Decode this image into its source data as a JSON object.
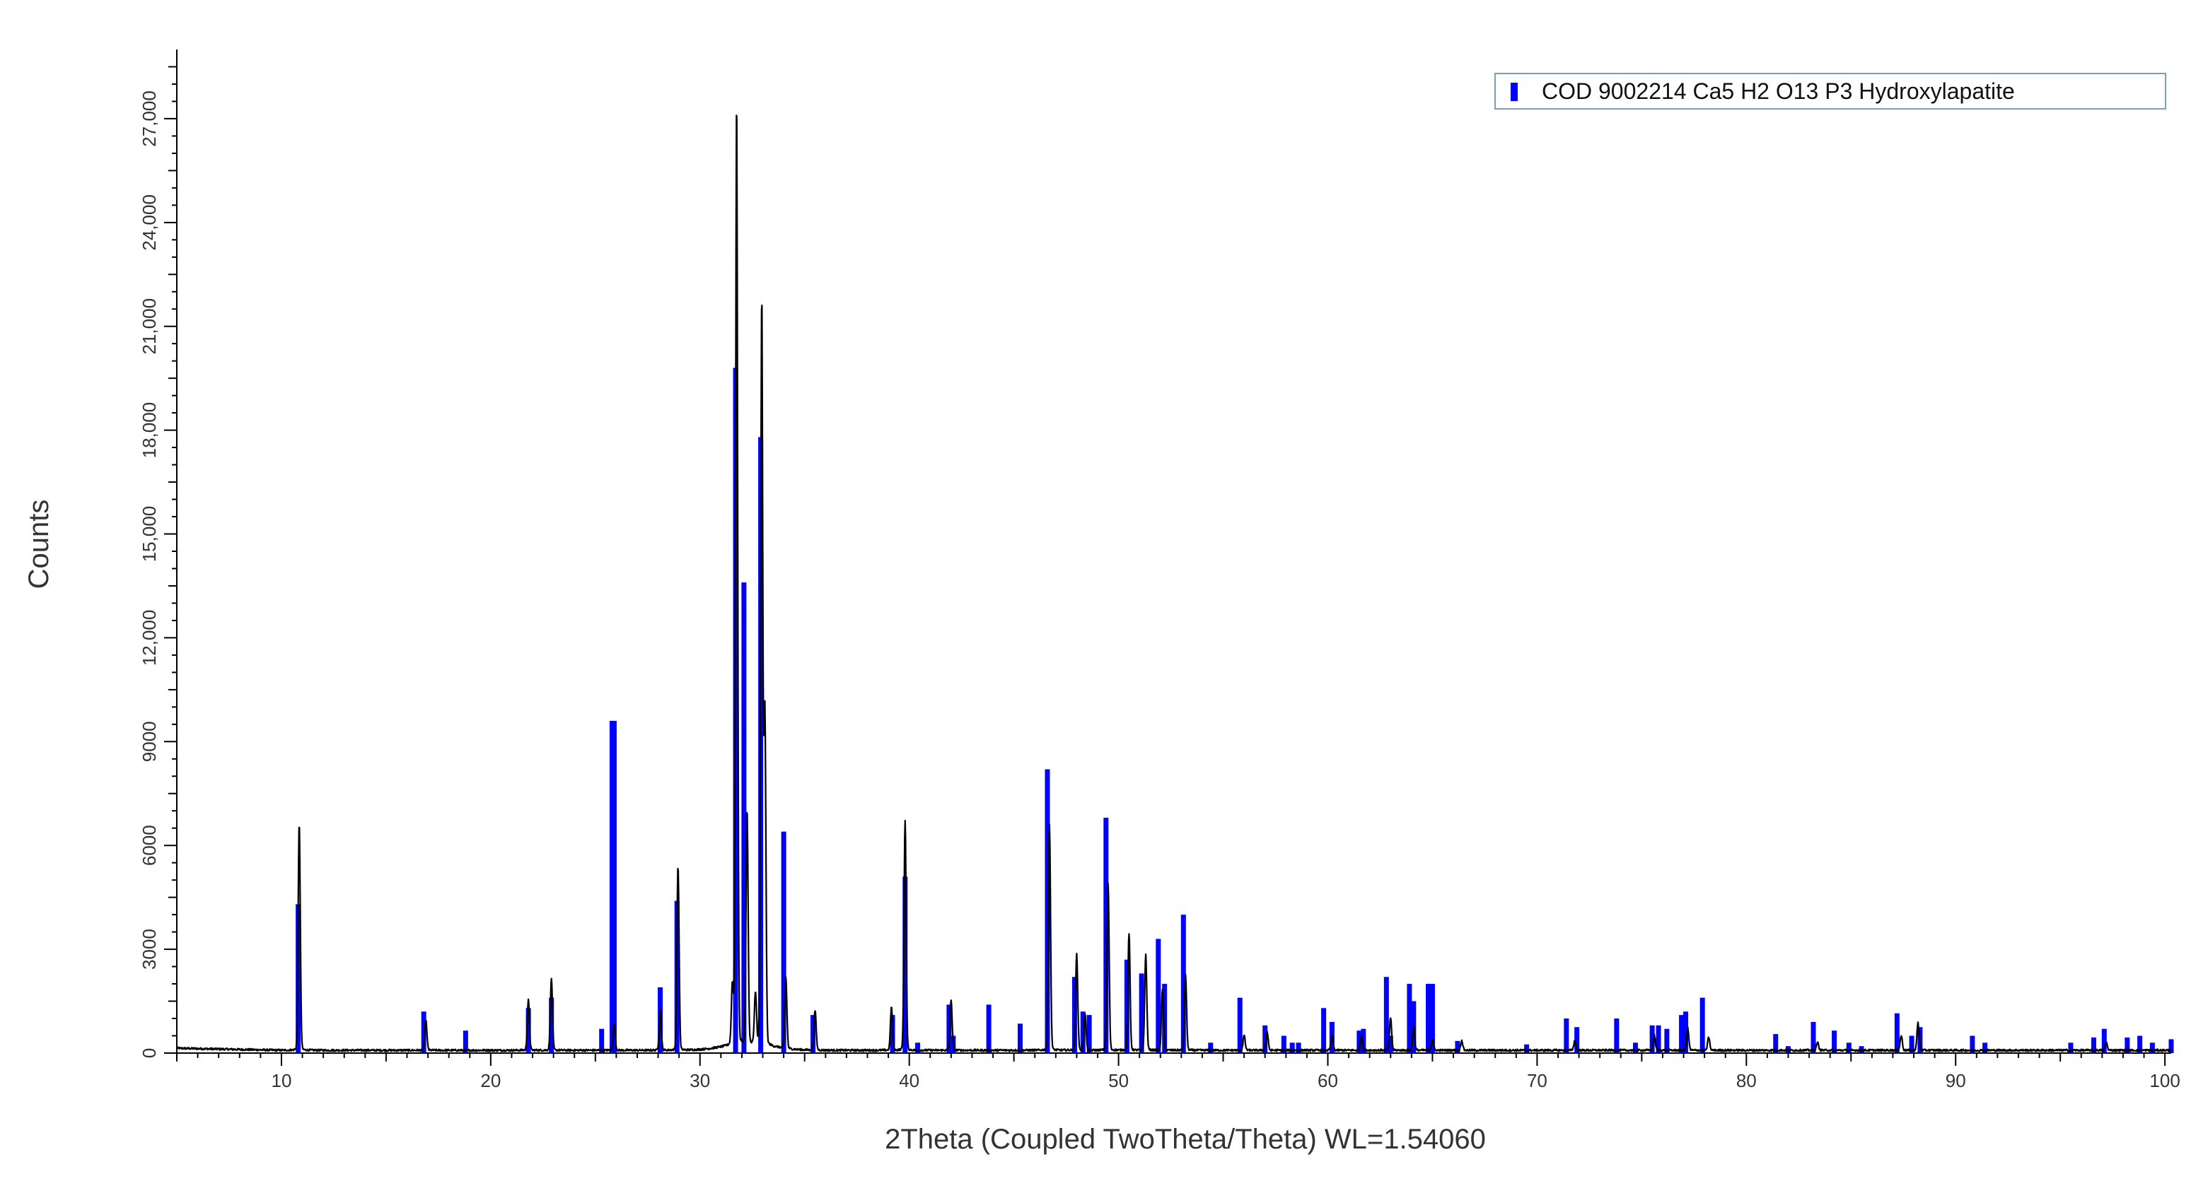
{
  "colors": {
    "measured": "#000000",
    "reference": "#0000ff",
    "axis": "#000000",
    "legend_border": "#7a9cc9",
    "text": "#333333"
  },
  "chart_data": {
    "type": "line",
    "xlabel": "2Theta (Coupled TwoTheta/Theta) WL=1.54060",
    "ylabel": "Counts",
    "xlim": [
      5,
      100.3
    ],
    "ylim": [
      0,
      29000
    ],
    "x_ticks": [
      10,
      20,
      30,
      40,
      50,
      60,
      70,
      80,
      90,
      100
    ],
    "y_ticks": [
      0,
      3000,
      6000,
      9000,
      12000,
      15000,
      18000,
      21000,
      24000,
      27000
    ],
    "y_tick_labels": [
      "0",
      "3000",
      "6000",
      "9000",
      "12,000",
      "15,000",
      "18,000",
      "21,000",
      "24,000",
      "27,000"
    ],
    "legend": {
      "entries": [
        "COD 9002214 Ca5 H2 O13 P3 Hydroxylapatite"
      ],
      "placement": "top-right"
    },
    "series": [
      {
        "name": "COD 9002214 Ca5 H2 O13 P3 Hydroxylapatite",
        "type": "reference_sticks",
        "x": [
          10.8,
          16.8,
          18.8,
          21.8,
          22.9,
          25.3,
          25.8,
          25.9,
          28.1,
          28.9,
          31.7,
          32.1,
          32.9,
          34.0,
          35.4,
          39.2,
          39.8,
          40.4,
          41.9,
          42.1,
          43.8,
          45.3,
          46.6,
          47.9,
          48.3,
          48.6,
          49.4,
          50.4,
          51.1,
          51.9,
          52.2,
          53.1,
          54.4,
          55.8,
          57.0,
          57.9,
          58.3,
          58.6,
          59.8,
          60.2,
          61.5,
          61.7,
          62.8,
          63.0,
          63.9,
          64.1,
          64.8,
          65.0,
          66.2,
          69.5,
          71.4,
          71.9,
          73.8,
          74.7,
          75.5,
          75.8,
          76.2,
          76.9,
          77.1,
          77.9,
          81.4,
          82.0,
          83.2,
          84.2,
          84.9,
          85.5,
          87.2,
          87.9,
          88.3,
          90.8,
          91.4,
          95.5,
          96.6,
          97.1,
          98.2,
          98.8,
          99.4,
          100.3
        ],
        "y": [
          4300,
          1200,
          650,
          1300,
          1600,
          700,
          9600,
          9600,
          1900,
          4400,
          19800,
          13600,
          17800,
          6400,
          1100,
          1100,
          5100,
          300,
          1400,
          500,
          1400,
          850,
          8200,
          2200,
          1200,
          1100,
          6800,
          2700,
          2300,
          3300,
          2000,
          4000,
          300,
          1600,
          800,
          500,
          300,
          300,
          1300,
          900,
          650,
          700,
          2200,
          500,
          2000,
          1500,
          2000,
          2000,
          350,
          250,
          1000,
          750,
          1000,
          300,
          800,
          800,
          700,
          1100,
          1200,
          1600,
          550,
          200,
          900,
          650,
          300,
          200,
          1150,
          500,
          750,
          500,
          300,
          300,
          450,
          700,
          450,
          500,
          300,
          400
        ]
      },
      {
        "name": "",
        "type": "measured_pattern",
        "baseline": 80,
        "peaks": [
          {
            "x": 10.85,
            "y": 6500
          },
          {
            "x": 16.9,
            "y": 950
          },
          {
            "x": 21.8,
            "y": 1500
          },
          {
            "x": 22.9,
            "y": 2100
          },
          {
            "x": 25.9,
            "y": 800
          },
          {
            "x": 28.1,
            "y": 1200
          },
          {
            "x": 28.95,
            "y": 5300
          },
          {
            "x": 31.55,
            "y": 1800
          },
          {
            "x": 31.75,
            "y": 26900
          },
          {
            "x": 32.25,
            "y": 6700
          },
          {
            "x": 32.65,
            "y": 1500
          },
          {
            "x": 32.95,
            "y": 21200
          },
          {
            "x": 33.1,
            "y": 9500
          },
          {
            "x": 34.1,
            "y": 2100
          },
          {
            "x": 35.5,
            "y": 1200
          },
          {
            "x": 39.15,
            "y": 1300
          },
          {
            "x": 39.8,
            "y": 6600
          },
          {
            "x": 42.0,
            "y": 1500
          },
          {
            "x": 46.7,
            "y": 6500
          },
          {
            "x": 48.0,
            "y": 2800
          },
          {
            "x": 48.4,
            "y": 1100
          },
          {
            "x": 49.5,
            "y": 4800
          },
          {
            "x": 50.5,
            "y": 3400
          },
          {
            "x": 51.3,
            "y": 2800
          },
          {
            "x": 52.1,
            "y": 1800
          },
          {
            "x": 53.2,
            "y": 2200
          },
          {
            "x": 56.0,
            "y": 500
          },
          {
            "x": 57.1,
            "y": 600
          },
          {
            "x": 60.2,
            "y": 500
          },
          {
            "x": 61.6,
            "y": 500
          },
          {
            "x": 63.0,
            "y": 1000
          },
          {
            "x": 64.1,
            "y": 750
          },
          {
            "x": 65.0,
            "y": 400
          },
          {
            "x": 66.4,
            "y": 350
          },
          {
            "x": 71.8,
            "y": 350
          },
          {
            "x": 75.6,
            "y": 500
          },
          {
            "x": 77.2,
            "y": 700
          },
          {
            "x": 78.2,
            "y": 450
          },
          {
            "x": 83.4,
            "y": 300
          },
          {
            "x": 87.4,
            "y": 500
          },
          {
            "x": 88.2,
            "y": 850
          },
          {
            "x": 97.2,
            "y": 300
          }
        ]
      }
    ]
  }
}
